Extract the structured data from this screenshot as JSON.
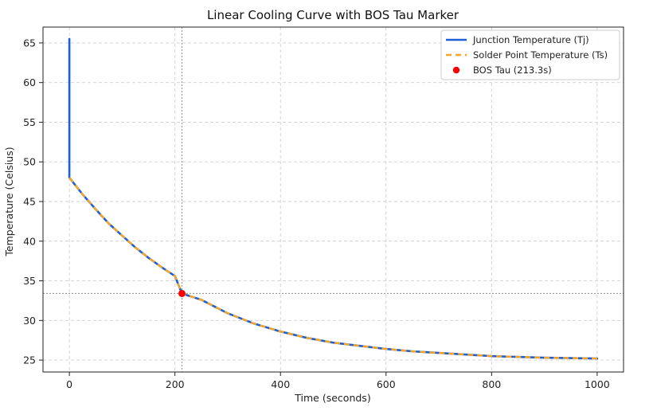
{
  "chart_data": {
    "type": "line",
    "title": "Linear Cooling Curve with BOS Tau Marker",
    "xlabel": "Time (seconds)",
    "ylabel": "Temperature (Celsius)",
    "xlim": [
      -50,
      1050
    ],
    "ylim": [
      23.5,
      67
    ],
    "xticks": [
      0,
      200,
      400,
      600,
      800,
      1000
    ],
    "yticks": [
      25,
      30,
      35,
      40,
      45,
      50,
      55,
      60,
      65
    ],
    "grid": true,
    "legend_position": "top-right",
    "series": [
      {
        "name": "Junction Temperature (Tj)",
        "color": "#1f5fd6",
        "style": "solid",
        "x": [
          0,
          0,
          25,
          50,
          75,
          100,
          125,
          150,
          175,
          200,
          213.3,
          250,
          300,
          350,
          400,
          450,
          500,
          550,
          600,
          650,
          700,
          750,
          800,
          850,
          900,
          950,
          1000
        ],
        "y": [
          65.5,
          48.0,
          45.9,
          44.0,
          42.2,
          40.7,
          39.2,
          37.9,
          36.7,
          35.6,
          33.4,
          32.6,
          30.9,
          29.6,
          28.6,
          27.8,
          27.2,
          26.8,
          26.4,
          26.1,
          25.9,
          25.7,
          25.5,
          25.4,
          25.3,
          25.25,
          25.2
        ]
      },
      {
        "name": "Solder Point Temperature (Ts)",
        "color": "#f5a623",
        "style": "dashed",
        "x": [
          0,
          25,
          50,
          75,
          100,
          125,
          150,
          175,
          200,
          213.3,
          250,
          300,
          350,
          400,
          450,
          500,
          550,
          600,
          650,
          700,
          750,
          800,
          850,
          900,
          950,
          1000
        ],
        "y": [
          48.0,
          45.9,
          44.0,
          42.2,
          40.7,
          39.2,
          37.9,
          36.7,
          35.6,
          33.4,
          32.6,
          30.9,
          29.6,
          28.6,
          27.8,
          27.2,
          26.8,
          26.4,
          26.1,
          25.9,
          25.7,
          25.5,
          25.4,
          25.3,
          25.25,
          25.2
        ]
      }
    ],
    "marker": {
      "name": "BOS Tau (213.3s)",
      "x": 213.3,
      "y": 33.4,
      "color": "#ff0000"
    },
    "reference_lines": {
      "vertical_x": 213.3,
      "horizontal_y": 33.4,
      "color": "#999999"
    }
  }
}
